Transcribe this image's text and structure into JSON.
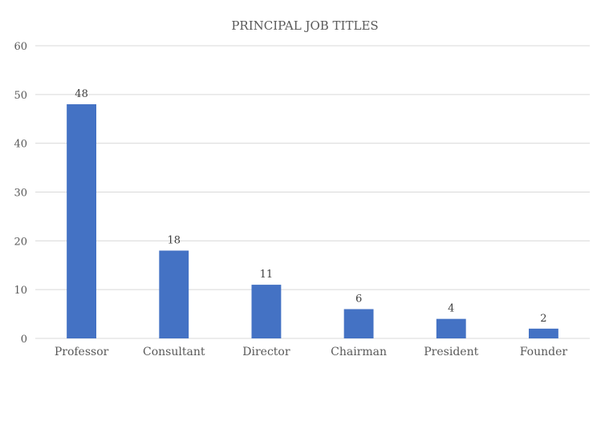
{
  "chart_data": {
    "type": "bar",
    "title": "PRINCIPAL JOB TITLES",
    "categories": [
      "Professor",
      "Consultant",
      "Director",
      "Chairman",
      "President",
      "Founder"
    ],
    "values": [
      48,
      18,
      11,
      6,
      4,
      2
    ],
    "data_labels": [
      "48",
      "18",
      "11",
      "6",
      "4",
      "2"
    ],
    "xlabel": "",
    "ylabel": "",
    "ylim": [
      0,
      60
    ],
    "yticks": [
      "0",
      "10",
      "20",
      "30",
      "40",
      "50",
      "60"
    ],
    "grid": true,
    "legend": "none",
    "colors": {
      "bar": "#4472C4",
      "grid": "#D9D9D9",
      "text": "#595959"
    }
  }
}
